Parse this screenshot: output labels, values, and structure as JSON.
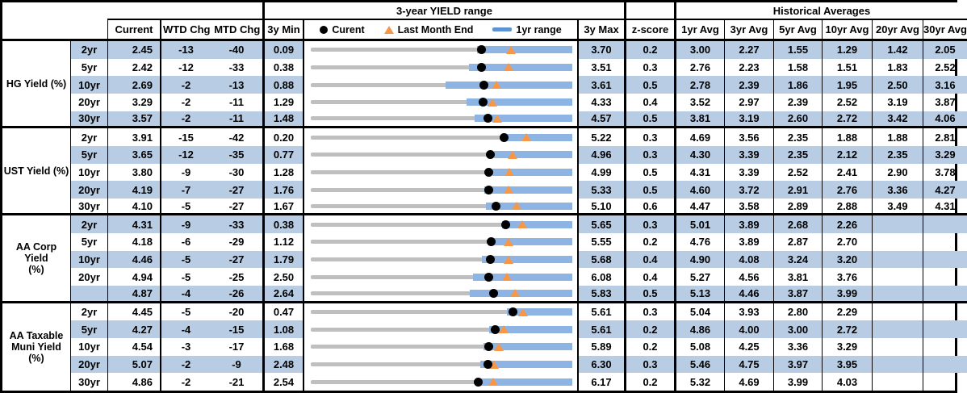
{
  "header": {
    "range_title": "3-year YIELD range",
    "hist_title": "Historical Averages"
  },
  "columns": {
    "current": "Current",
    "wtd": "WTD Chg",
    "mtd": "MTD Chg",
    "min3y": "3y Min",
    "max3y": "3y Max",
    "z": "z-score",
    "avgs": [
      "1yr Avg",
      "3yr Avg",
      "5yr Avg",
      "10yr Avg",
      "20yr Avg",
      "30yr Avg"
    ]
  },
  "legend": [
    {
      "marker": "black-dot",
      "label": "Curent"
    },
    {
      "marker": "orange-triangle",
      "label": "Last Month End"
    },
    {
      "marker": "blue-bar",
      "label": "1yr range"
    }
  ],
  "colors": {
    "stripe": "#B8CCE4",
    "range_bar": "#8DB4E2",
    "track": "#BFBFBF",
    "current_dot": "#000000",
    "last_month_triangle": "#F79646",
    "legend_bar": "#5E93D1",
    "border": "#000000"
  },
  "sections": [
    {
      "label_lines": [
        "HG Yield (%)"
      ],
      "rows": [
        {
          "tenor": "2yr",
          "current": "2.45",
          "wtd": "-13",
          "mtd": "-40",
          "min": "0.09",
          "max": "3.70",
          "z": "0.2",
          "avgs": [
            "3.00",
            "2.27",
            "1.55",
            "1.29",
            "1.42",
            "2.05"
          ]
        },
        {
          "tenor": "5yr",
          "current": "2.42",
          "wtd": "-12",
          "mtd": "-33",
          "min": "0.38",
          "max": "3.51",
          "z": "0.3",
          "avgs": [
            "2.76",
            "2.23",
            "1.58",
            "1.51",
            "1.83",
            "2.52"
          ]
        },
        {
          "tenor": "10yr",
          "current": "2.69",
          "wtd": "-2",
          "mtd": "-13",
          "min": "0.88",
          "max": "3.61",
          "z": "0.5",
          "avgs": [
            "2.78",
            "2.39",
            "1.86",
            "1.95",
            "2.50",
            "3.16"
          ]
        },
        {
          "tenor": "20yr",
          "current": "3.29",
          "wtd": "-2",
          "mtd": "-11",
          "min": "1.29",
          "max": "4.33",
          "z": "0.4",
          "avgs": [
            "3.52",
            "2.97",
            "2.39",
            "2.52",
            "3.19",
            "3.87"
          ]
        },
        {
          "tenor": "30yr",
          "current": "3.57",
          "wtd": "-2",
          "mtd": "-11",
          "min": "1.48",
          "max": "4.57",
          "z": "0.5",
          "avgs": [
            "3.81",
            "3.19",
            "2.60",
            "2.72",
            "3.42",
            "4.06"
          ]
        }
      ]
    },
    {
      "label_lines": [
        "UST Yield (%)"
      ],
      "rows": [
        {
          "tenor": "2yr",
          "current": "3.91",
          "wtd": "-15",
          "mtd": "-42",
          "min": "0.20",
          "max": "5.22",
          "z": "0.3",
          "avgs": [
            "4.69",
            "3.56",
            "2.35",
            "1.88",
            "1.88",
            "2.81"
          ]
        },
        {
          "tenor": "5yr",
          "current": "3.65",
          "wtd": "-12",
          "mtd": "-35",
          "min": "0.77",
          "max": "4.96",
          "z": "0.3",
          "avgs": [
            "4.30",
            "3.39",
            "2.35",
            "2.12",
            "2.35",
            "3.29"
          ]
        },
        {
          "tenor": "10yr",
          "current": "3.80",
          "wtd": "-9",
          "mtd": "-30",
          "min": "1.28",
          "max": "4.99",
          "z": "0.5",
          "avgs": [
            "4.31",
            "3.39",
            "2.52",
            "2.41",
            "2.90",
            "3.78"
          ]
        },
        {
          "tenor": "20yr",
          "current": "4.19",
          "wtd": "-7",
          "mtd": "-27",
          "min": "1.76",
          "max": "5.33",
          "z": "0.5",
          "avgs": [
            "4.60",
            "3.72",
            "2.91",
            "2.76",
            "3.36",
            "4.27"
          ]
        },
        {
          "tenor": "30yr",
          "current": "4.10",
          "wtd": "-5",
          "mtd": "-27",
          "min": "1.67",
          "max": "5.10",
          "z": "0.6",
          "avgs": [
            "4.47",
            "3.58",
            "2.89",
            "2.88",
            "3.49",
            "4.31"
          ]
        }
      ]
    },
    {
      "label_lines": [
        "AA Corp Yield",
        "(%)"
      ],
      "rows": [
        {
          "tenor": "2yr",
          "current": "4.31",
          "wtd": "-9",
          "mtd": "-33",
          "min": "0.38",
          "max": "5.65",
          "z": "0.3",
          "avgs": [
            "5.01",
            "3.89",
            "2.68",
            "2.26",
            "",
            ""
          ]
        },
        {
          "tenor": "5yr",
          "current": "4.18",
          "wtd": "-6",
          "mtd": "-29",
          "min": "1.12",
          "max": "5.55",
          "z": "0.2",
          "avgs": [
            "4.76",
            "3.89",
            "2.87",
            "2.70",
            "",
            ""
          ]
        },
        {
          "tenor": "10yr",
          "current": "4.46",
          "wtd": "-5",
          "mtd": "-27",
          "min": "1.79",
          "max": "5.68",
          "z": "0.4",
          "avgs": [
            "4.90",
            "4.08",
            "3.24",
            "3.20",
            "",
            ""
          ]
        },
        {
          "tenor": "20yr",
          "current": "4.94",
          "wtd": "-5",
          "mtd": "-25",
          "min": "2.50",
          "max": "6.08",
          "z": "0.4",
          "avgs": [
            "5.27",
            "4.56",
            "3.81",
            "3.76",
            "",
            ""
          ]
        },
        {
          "tenor": "",
          "current": "4.87",
          "wtd": "-4",
          "mtd": "-26",
          "min": "2.64",
          "max": "5.83",
          "z": "0.5",
          "avgs": [
            "5.13",
            "4.46",
            "3.87",
            "3.99",
            "",
            ""
          ]
        }
      ]
    },
    {
      "label_lines": [
        "AA Taxable",
        "Muni Yield",
        "(%)"
      ],
      "rows": [
        {
          "tenor": "2yr",
          "current": "4.45",
          "wtd": "-5",
          "mtd": "-20",
          "min": "0.47",
          "max": "5.61",
          "z": "0.3",
          "avgs": [
            "5.04",
            "3.93",
            "2.80",
            "2.29",
            "",
            ""
          ]
        },
        {
          "tenor": "5yr",
          "current": "4.27",
          "wtd": "-4",
          "mtd": "-15",
          "min": "1.08",
          "max": "5.61",
          "z": "0.2",
          "avgs": [
            "4.86",
            "4.00",
            "3.00",
            "2.72",
            "",
            ""
          ]
        },
        {
          "tenor": "10yr",
          "current": "4.54",
          "wtd": "-3",
          "mtd": "-17",
          "min": "1.68",
          "max": "5.89",
          "z": "0.2",
          "avgs": [
            "5.08",
            "4.25",
            "3.36",
            "3.29",
            "",
            ""
          ]
        },
        {
          "tenor": "20yr",
          "current": "5.07",
          "wtd": "-2",
          "mtd": "-9",
          "min": "2.48",
          "max": "6.30",
          "z": "0.3",
          "avgs": [
            "5.46",
            "4.75",
            "3.97",
            "3.95",
            "",
            ""
          ]
        },
        {
          "tenor": "30yr",
          "current": "4.86",
          "wtd": "-2",
          "mtd": "-21",
          "min": "2.54",
          "max": "6.17",
          "z": "0.2",
          "avgs": [
            "5.32",
            "4.69",
            "3.99",
            "4.03",
            "",
            ""
          ]
        }
      ]
    }
  ],
  "chart_data": {
    "type": "bar",
    "variant": "horizontal_range_bullet_per_row",
    "title": "3-year YIELD range",
    "legend": [
      "Curent",
      "Last Month End",
      "1yr range"
    ],
    "legend_position": "top",
    "grid": false,
    "note": "Each row is its own horizontal scale from min_3y to max_3y. Gray track = 3y range, blue bar = 1yr range, black dot = current yield, orange triangle = last month end. 1yr_low and last_month_end are estimated from marker pixel positions.",
    "fields": [
      "group",
      "tenor",
      "min_3y",
      "max_3y",
      "current",
      "last_month_end",
      "yr1_low",
      "yr1_high"
    ],
    "rows": [
      [
        "HG Yield (%)",
        "2yr",
        0.09,
        3.7,
        2.45,
        2.85,
        2.38,
        3.7
      ],
      [
        "HG Yield (%)",
        "5yr",
        0.38,
        3.51,
        2.42,
        2.75,
        2.27,
        3.51
      ],
      [
        "HG Yield (%)",
        "10yr",
        0.88,
        3.61,
        2.69,
        2.82,
        2.29,
        3.61
      ],
      [
        "HG Yield (%)",
        "20yr",
        1.29,
        4.33,
        3.29,
        3.4,
        3.1,
        4.33
      ],
      [
        "HG Yield (%)",
        "30yr",
        1.48,
        4.57,
        3.57,
        3.68,
        3.42,
        4.57
      ],
      [
        "UST Yield (%)",
        "2yr",
        0.2,
        5.22,
        3.91,
        4.33,
        3.87,
        5.22
      ],
      [
        "UST Yield (%)",
        "5yr",
        0.77,
        4.96,
        3.65,
        4.0,
        3.7,
        4.96
      ],
      [
        "UST Yield (%)",
        "10yr",
        1.28,
        4.99,
        3.8,
        4.1,
        3.86,
        4.99
      ],
      [
        "UST Yield (%)",
        "20yr",
        1.76,
        5.33,
        4.19,
        4.46,
        4.13,
        5.33
      ],
      [
        "UST Yield (%)",
        "30yr",
        1.67,
        5.1,
        4.1,
        4.37,
        3.97,
        5.1
      ],
      [
        "AA Corp Yield (%)",
        "2yr",
        0.38,
        5.65,
        4.31,
        4.64,
        4.23,
        5.65
      ],
      [
        "AA Corp Yield (%)",
        "5yr",
        1.12,
        5.55,
        4.18,
        4.47,
        4.13,
        5.55
      ],
      [
        "AA Corp Yield (%)",
        "10yr",
        1.79,
        5.68,
        4.46,
        4.73,
        4.33,
        5.68
      ],
      [
        "AA Corp Yield (%)",
        "20yr",
        2.5,
        6.08,
        4.94,
        5.19,
        4.72,
        6.08
      ],
      [
        "AA Corp Yield (%)",
        "",
        2.64,
        5.83,
        4.87,
        5.13,
        4.58,
        5.83
      ],
      [
        "AA Taxable Muni Yield (%)",
        "2yr",
        0.47,
        5.61,
        4.45,
        4.65,
        4.33,
        5.61
      ],
      [
        "AA Taxable Muni Yield (%)",
        "5yr",
        1.08,
        5.61,
        4.27,
        4.42,
        4.17,
        5.61
      ],
      [
        "AA Taxable Muni Yield (%)",
        "10yr",
        1.68,
        5.89,
        4.54,
        4.71,
        4.46,
        5.89
      ],
      [
        "AA Taxable Muni Yield (%)",
        "20yr",
        2.48,
        6.3,
        5.07,
        5.16,
        4.96,
        6.3
      ],
      [
        "AA Taxable Muni Yield (%)",
        "30yr",
        2.54,
        6.17,
        4.86,
        5.07,
        4.82,
        6.17
      ]
    ]
  }
}
